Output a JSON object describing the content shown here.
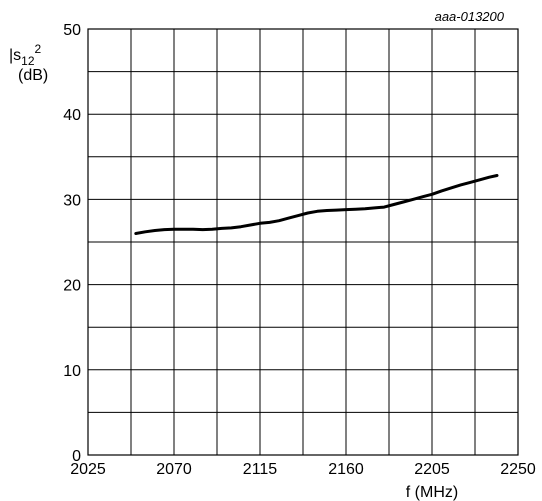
{
  "chart_data": {
    "type": "line",
    "title": "",
    "reference_label": "aaa-013200",
    "xlabel": "f (MHz)",
    "ylabel": {
      "base": "|s",
      "subscript": "12",
      "superscript": "2",
      "unit": "(dB)"
    },
    "xlim": [
      2025,
      2250
    ],
    "ylim": [
      0,
      50
    ],
    "x_ticks": [
      2025,
      2070,
      2115,
      2160,
      2205,
      2250
    ],
    "y_ticks": [
      0,
      10,
      20,
      30,
      40,
      50
    ],
    "x_tick_labels": [
      "2025",
      "2070",
      "2115",
      "2160",
      "2205",
      "2250"
    ],
    "y_tick_labels": [
      "0",
      "10",
      "20",
      "30",
      "40",
      "50"
    ],
    "grid": true,
    "grid_x_step": 22.5,
    "grid_y_step": 5,
    "series": [
      {
        "color": "#000000",
        "x": [
          2050,
          2055,
          2060,
          2065,
          2070,
          2075,
          2080,
          2085,
          2090,
          2095,
          2100,
          2105,
          2110,
          2115,
          2120,
          2125,
          2130,
          2135,
          2140,
          2145,
          2150,
          2155,
          2160,
          2165,
          2170,
          2175,
          2180,
          2185,
          2190,
          2195,
          2200,
          2205,
          2210,
          2215,
          2220,
          2225,
          2230,
          2235,
          2239
        ],
        "y": [
          26.0,
          26.2,
          26.35,
          26.45,
          26.5,
          26.5,
          26.5,
          26.45,
          26.5,
          26.6,
          26.65,
          26.8,
          27.0,
          27.2,
          27.3,
          27.5,
          27.8,
          28.1,
          28.4,
          28.6,
          28.7,
          28.75,
          28.8,
          28.85,
          28.9,
          29.0,
          29.1,
          29.4,
          29.7,
          30.0,
          30.3,
          30.6,
          31.0,
          31.35,
          31.7,
          32.0,
          32.3,
          32.6,
          32.8
        ]
      }
    ]
  }
}
